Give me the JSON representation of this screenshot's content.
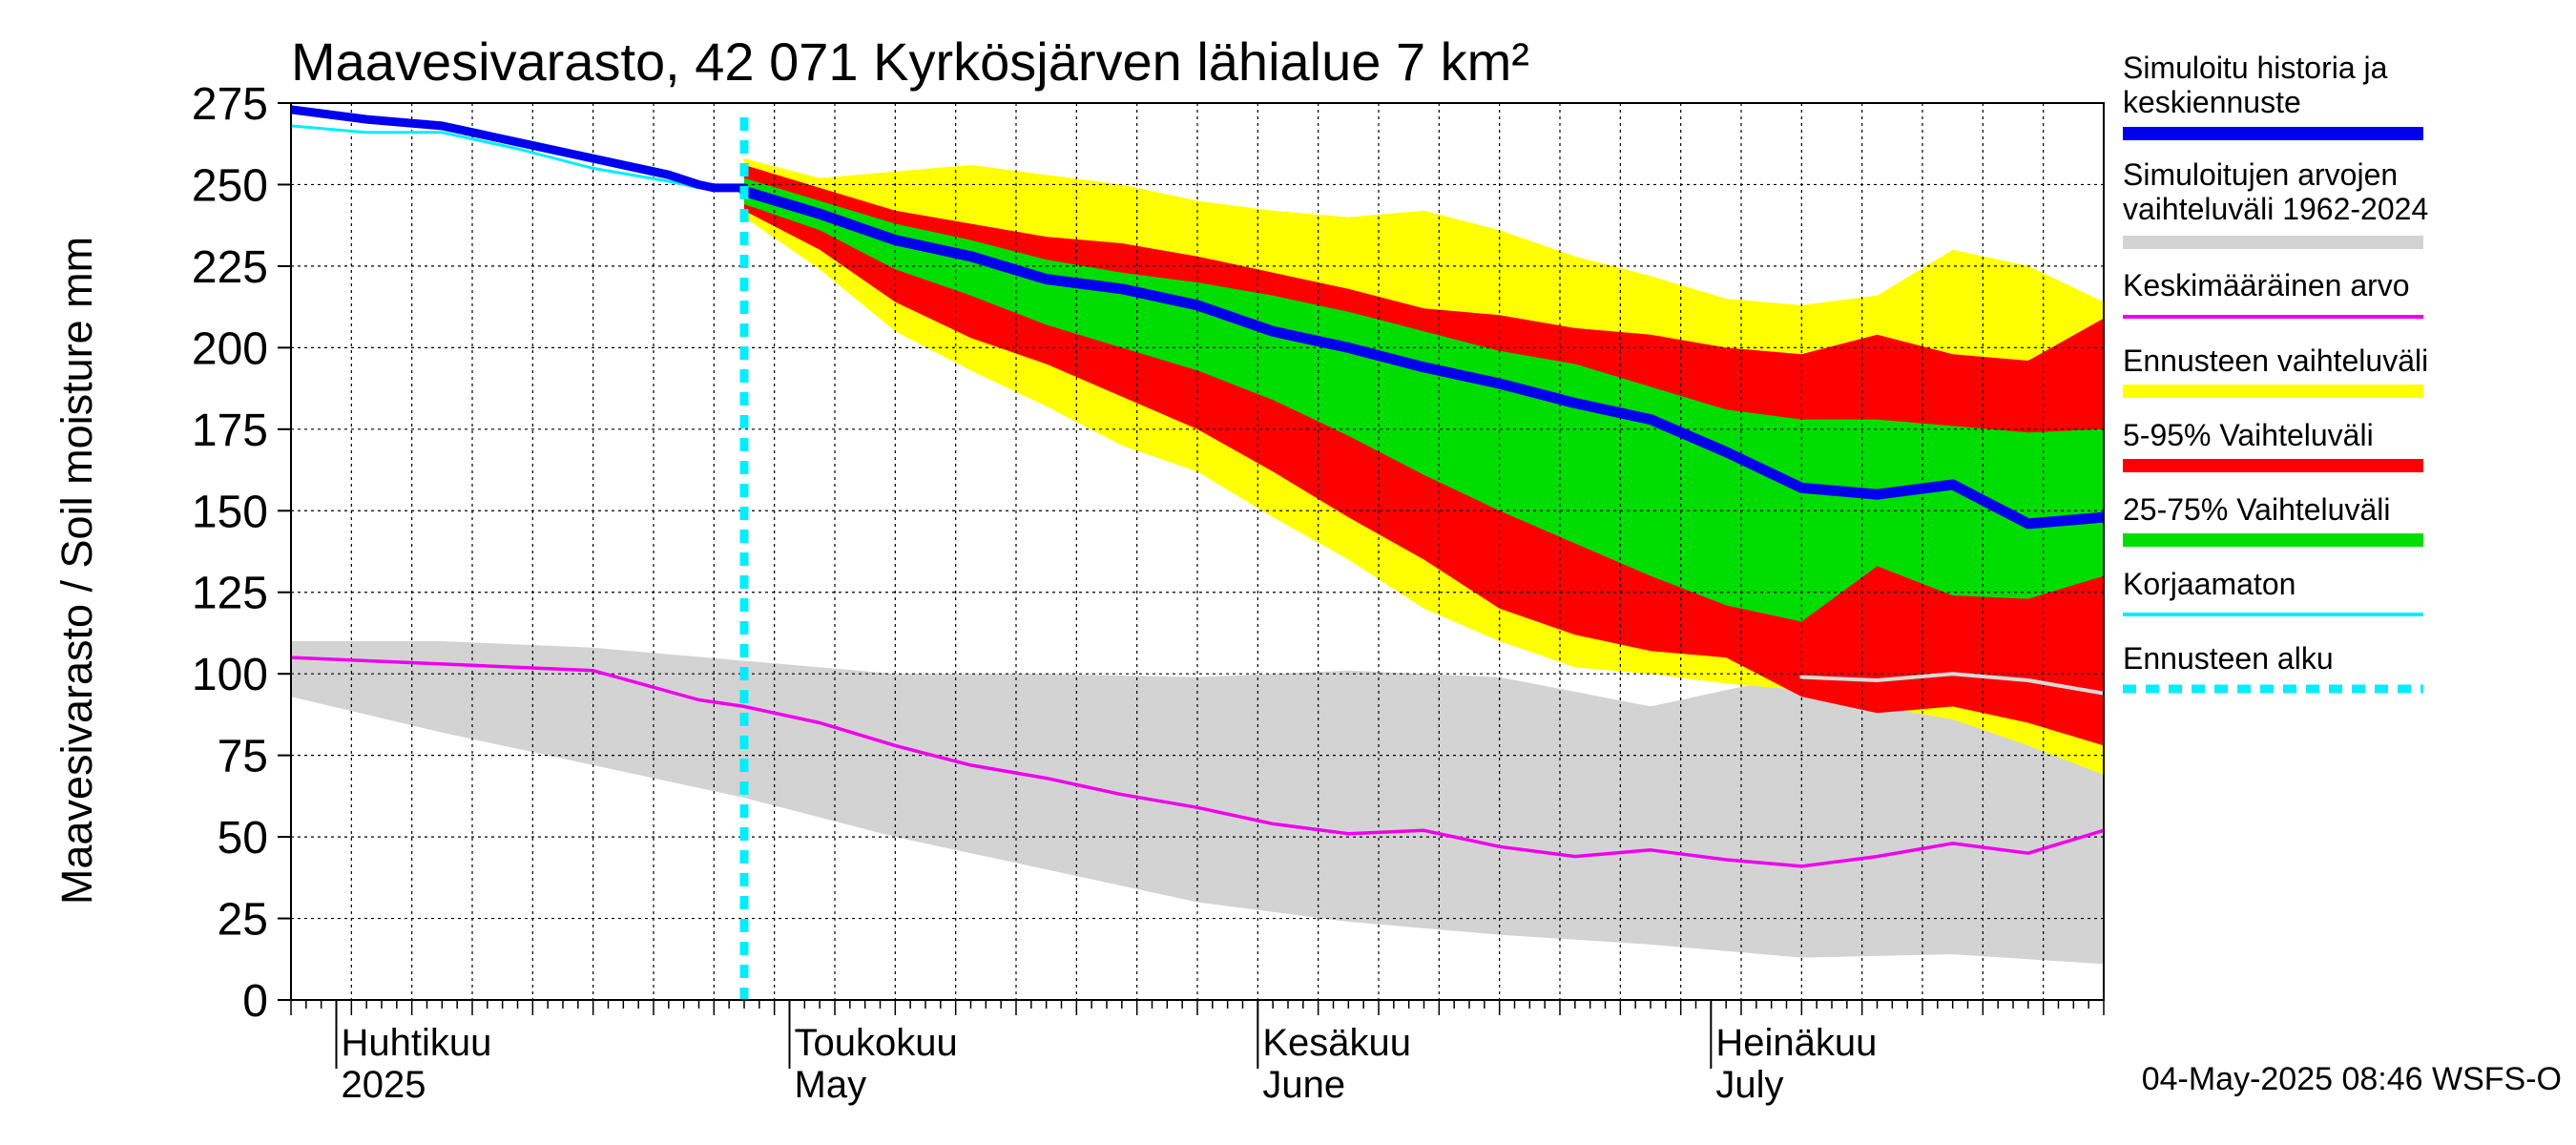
{
  "chart_data": {
    "type": "area",
    "title": "Maavesivarasto, 42 071 Kyrkösjärven lähialue 7 km²",
    "ylabel": "Maavesivarasto / Soil moisture   mm",
    "ylim": [
      0,
      275
    ],
    "yticks": [
      0,
      25,
      50,
      75,
      100,
      125,
      150,
      175,
      200,
      225,
      250,
      275
    ],
    "x_start_day": 0,
    "x_end_day": 120,
    "x_origin_date": "2025-03-29",
    "forecast_start_day": 30,
    "months": [
      {
        "name": "Huhtikuu",
        "sub": "2025",
        "day": 3
      },
      {
        "name": "Toukokuu",
        "sub": "May",
        "day": 33
      },
      {
        "name": "Kesäkuu",
        "sub": "June",
        "day": 64
      },
      {
        "name": "Heinäkuu",
        "sub": "July",
        "day": 94
      }
    ],
    "footer": "04-May-2025 08:46 WSFS-O",
    "colors": {
      "history": "#0000ee",
      "range": "#d3d3d3",
      "mean": "#ee00ee",
      "forecast_range": "#ffff00",
      "p5_95": "#ff0000",
      "p25_75": "#00dd00",
      "uncorrected": "#00eeff",
      "forecast_start": "#00eeff",
      "range_upper_forecast": "#d8d8d8"
    },
    "legend": [
      {
        "label": "Simuloitu historia ja keskiennuste",
        "lines": [
          "Simuloitu historia ja",
          "keskiennuste"
        ],
        "color": "#0000ee",
        "style": "thick"
      },
      {
        "label": "Simuloitujen arvojen vaihteluväli 1962-2024",
        "lines": [
          "Simuloitujen arvojen",
          "vaihteluväli 1962-2024"
        ],
        "color": "#d3d3d3",
        "style": "thick"
      },
      {
        "label": "Keskimääräinen arvo",
        "lines": [
          "Keskimääräinen arvo"
        ],
        "color": "#ee00ee",
        "style": "thin"
      },
      {
        "label": "Ennusteen vaihteluväli",
        "lines": [
          "Ennusteen vaihteluväli"
        ],
        "color": "#ffff00",
        "style": "thick"
      },
      {
        "label": "5-95% Vaihteluväli",
        "lines": [
          "5-95% Vaihteluväli"
        ],
        "color": "#ff0000",
        "style": "thick"
      },
      {
        "label": "25-75% Vaihteluväli",
        "lines": [
          "25-75% Vaihteluväli"
        ],
        "color": "#00dd00",
        "style": "thick"
      },
      {
        "label": "Korjaamaton",
        "lines": [
          "Korjaamaton"
        ],
        "color": "#00eeff",
        "style": "thin"
      },
      {
        "label": "Ennusteen alku",
        "lines": [
          "Ennusteen alku"
        ],
        "color": "#00eeff",
        "style": "dashed"
      }
    ],
    "series": {
      "range_upper": {
        "x": [
          0,
          10,
          20,
          30,
          40,
          50,
          60,
          70,
          80,
          90,
          100,
          110,
          120
        ],
        "y": [
          110,
          110,
          108,
          104,
          100,
          100,
          99,
          101,
          99,
          90,
          100,
          94,
          97
        ]
      },
      "range_lower": {
        "x": [
          0,
          10,
          20,
          30,
          40,
          50,
          60,
          70,
          80,
          90,
          100,
          110,
          120
        ],
        "y": [
          93,
          82,
          72,
          62,
          50,
          40,
          30,
          24,
          20,
          17,
          13,
          14,
          11
        ]
      },
      "mean": {
        "x": [
          0,
          10,
          20,
          27,
          30,
          35,
          40,
          45,
          50,
          55,
          60,
          65,
          70,
          75,
          80,
          85,
          90,
          95,
          100,
          105,
          110,
          115,
          120
        ],
        "y": [
          105,
          103,
          101,
          92,
          90,
          85,
          78,
          72,
          68,
          63,
          59,
          54,
          51,
          52,
          47,
          44,
          46,
          43,
          41,
          44,
          48,
          45,
          52
        ]
      },
      "history": {
        "x": [
          0,
          5,
          10,
          15,
          20,
          25,
          27,
          28,
          30
        ],
        "y": [
          273,
          270,
          268,
          263,
          258,
          253,
          250,
          249,
          249
        ]
      },
      "uncorrected": {
        "x": [
          0,
          5,
          10,
          15,
          20,
          25,
          27,
          28,
          30
        ],
        "y": [
          268,
          266,
          266,
          261,
          255,
          251,
          249,
          249,
          249
        ]
      },
      "forecast_mean": {
        "x": [
          30,
          35,
          40,
          45,
          50,
          55,
          60,
          65,
          70,
          75,
          80,
          85,
          90,
          95,
          100,
          105,
          110,
          115,
          120
        ],
        "y": [
          248,
          241,
          233,
          228,
          221,
          218,
          213,
          205,
          200,
          194,
          189,
          183,
          178,
          168,
          157,
          155,
          158,
          146,
          148
        ]
      },
      "forecast_range_low_white": {
        "x": [
          100,
          105,
          110,
          115,
          120
        ],
        "y": [
          99,
          98,
          100,
          98,
          94
        ]
      },
      "forecast_max": {
        "x": [
          30,
          35,
          40,
          45,
          50,
          55,
          60,
          65,
          70,
          75,
          80,
          85,
          90,
          95,
          100,
          105,
          110,
          115,
          120
        ],
        "y": [
          258,
          252,
          254,
          256,
          253,
          250,
          245,
          242,
          240,
          242,
          236,
          228,
          222,
          215,
          213,
          216,
          230,
          225,
          214
        ]
      },
      "p95": {
        "x": [
          30,
          35,
          40,
          45,
          50,
          55,
          60,
          65,
          70,
          75,
          80,
          85,
          90,
          95,
          100,
          105,
          110,
          115,
          120
        ],
        "y": [
          256,
          249,
          242,
          238,
          234,
          232,
          228,
          223,
          218,
          212,
          210,
          206,
          204,
          200,
          198,
          204,
          198,
          196,
          209
        ]
      },
      "p75": {
        "x": [
          30,
          35,
          40,
          45,
          50,
          55,
          60,
          65,
          70,
          75,
          80,
          85,
          90,
          95,
          100,
          105,
          110,
          115,
          120
        ],
        "y": [
          252,
          245,
          238,
          233,
          227,
          223,
          220,
          216,
          211,
          205,
          199,
          195,
          188,
          181,
          178,
          178,
          176,
          174,
          175
        ]
      },
      "p25": {
        "x": [
          30,
          35,
          40,
          45,
          50,
          55,
          60,
          65,
          70,
          75,
          80,
          85,
          90,
          95,
          100,
          105,
          110,
          115,
          120
        ],
        "y": [
          244,
          236,
          224,
          216,
          207,
          200,
          193,
          184,
          173,
          161,
          150,
          140,
          130,
          121,
          116,
          133,
          124,
          123,
          130
        ]
      },
      "p5": {
        "x": [
          30,
          35,
          40,
          45,
          50,
          55,
          60,
          65,
          70,
          75,
          80,
          85,
          90,
          95,
          100,
          105,
          110,
          115,
          120
        ],
        "y": [
          242,
          230,
          214,
          203,
          195,
          185,
          175,
          162,
          148,
          135,
          120,
          112,
          107,
          105,
          93,
          88,
          90,
          85,
          78
        ]
      },
      "forecast_min": {
        "x": [
          30,
          35,
          40,
          45,
          50,
          55,
          60,
          65,
          70,
          75,
          80,
          85,
          90,
          95,
          100,
          105,
          110,
          115,
          120
        ],
        "y": [
          240,
          224,
          205,
          193,
          182,
          170,
          162,
          148,
          135,
          120,
          110,
          102,
          100,
          97,
          95,
          90,
          86,
          78,
          69
        ]
      }
    }
  }
}
